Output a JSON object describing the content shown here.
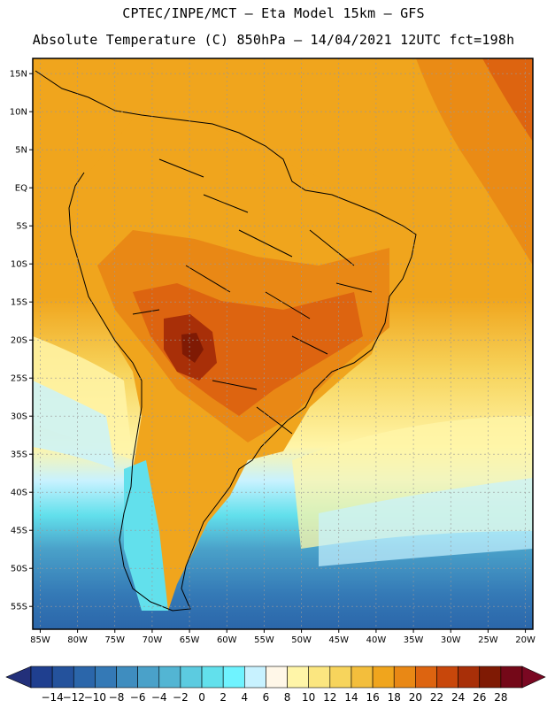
{
  "header": {
    "line1": "CPTEC/INPE/MCT –  Eta Model 15km – GFS",
    "line2": "Absolute Temperature (C) 850hPa – 14/04/2021 12UTC fct=198h"
  },
  "map": {
    "lon_labels": [
      "85W",
      "80W",
      "75W",
      "70W",
      "65W",
      "60W",
      "55W",
      "50W",
      "45W",
      "40W",
      "35W",
      "30W",
      "25W",
      "20W"
    ],
    "lat_labels": [
      "15N",
      "10N",
      "5N",
      "EQ",
      "5S",
      "10S",
      "15S",
      "20S",
      "25S",
      "30S",
      "35S",
      "40S",
      "45S",
      "50S",
      "55S"
    ],
    "lon_range": [
      -86,
      -19
    ],
    "lat_range": [
      -58,
      17
    ],
    "grid": true,
    "field": "Absolute Temperature (C) 850hPa"
  },
  "colorbar": {
    "labels": [
      "-14",
      "-12",
      "-10",
      "-8",
      "-6",
      "-4",
      "-2",
      "0",
      "2",
      "4",
      "6",
      "8",
      "10",
      "12",
      "14",
      "16",
      "18",
      "20",
      "22",
      "24",
      "26",
      "28"
    ],
    "colors": [
      "#1f3f8f",
      "#24529c",
      "#2b66aa",
      "#3479b6",
      "#3f8dbf",
      "#4aa1c9",
      "#53b5d3",
      "#5ccbe0",
      "#62e0ec",
      "#6ff3ff",
      "#c8f2ff",
      "#fff7e8",
      "#fff5a8",
      "#fbe680",
      "#f7d45c",
      "#f3be3c",
      "#f0a51d",
      "#e98815",
      "#dd6410",
      "#c8470b",
      "#a82f08",
      "#7f1a04",
      "#740818"
    ],
    "low_arrow_color": "#23307a",
    "high_arrow_color": "#7a0822"
  }
}
